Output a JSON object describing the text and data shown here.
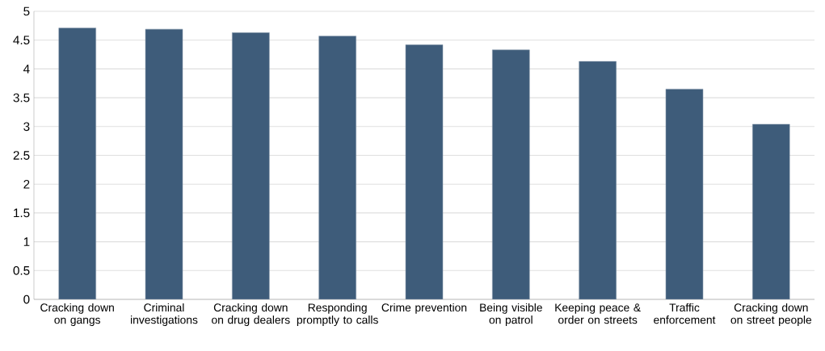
{
  "chart_data": {
    "type": "bar",
    "categories": [
      "Cracking down on gangs",
      "Criminal investigations",
      "Cracking down on drug dealers",
      "Responding promptly to calls",
      "Crime prevention",
      "Being visible on patrol",
      "Keeping peace & order on streets",
      "Traffic enforcement",
      "Cracking down on street people"
    ],
    "values": [
      4.71,
      4.69,
      4.63,
      4.57,
      4.42,
      4.33,
      4.13,
      3.65,
      3.04
    ],
    "color": "#3e5c7a",
    "ylim": [
      0,
      5
    ],
    "yticks": [
      0,
      0.5,
      1,
      1.5,
      2,
      2.5,
      3,
      3.5,
      4,
      4.5,
      5
    ],
    "grid": "y"
  }
}
